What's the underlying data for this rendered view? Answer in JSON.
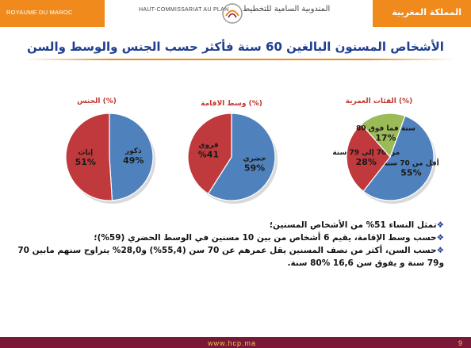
{
  "header": {
    "left_label": "ROYAUME DU MAROC",
    "right_label": "المملكة المغربية",
    "org_fr": "HAUT-COMMISSARIAT AU PLAN",
    "org_ar": "المندوبية السامية للتخطيط",
    "band_color": "#f08a1c"
  },
  "title": "الأشخاص المسنون البالغين 60 سنة فأكثر حسب الجنس والوسط والسن",
  "chart_data": [
    {
      "type": "pie",
      "title": "الجنس (%)",
      "slices": [
        {
          "label": "ذكور",
          "value": 49,
          "value_label": "49%",
          "color": "#4f81bd"
        },
        {
          "label": "إناث",
          "value": 51,
          "value_label": "51%",
          "color": "#c0393c"
        }
      ]
    },
    {
      "type": "pie",
      "title": "وسط الاقامة (%)",
      "slices": [
        {
          "label": "حضري",
          "value": 59,
          "value_label": "59%",
          "color": "#4f81bd"
        },
        {
          "label": "قروي",
          "value": 41,
          "value_label": "%41",
          "color": "#c0393c"
        }
      ]
    },
    {
      "type": "pie",
      "title": "الفئات العمرية (%)",
      "slices": [
        {
          "label": "أقل من 70 سنة",
          "value": 55,
          "value_label": "55%",
          "color": "#4f81bd"
        },
        {
          "label": "من 70 إلى 79 سنة",
          "value": 28,
          "value_label": "28%",
          "color": "#c0393c"
        },
        {
          "label": "80 سنة فما فوق",
          "value": 17,
          "value_label": "17%",
          "color": "#9bbb59"
        }
      ]
    }
  ],
  "bullets": [
    "تمثل النساء 51% من الأشخاص المسنين؛",
    "حسب وسط الإقامة، يقيم 6 أشخاص من بين 10 مسنين في الوسط الحضري (59%)؛",
    "حسب السن، أكثر من نصف المسنين يقل عمرهم عن 70 سن (55,4%) و28,0% يتراوح سنهم مابين 70 و79 سنة و يفوق سن 16,6 %80 سنة."
  ],
  "bullet_mark": "❖",
  "footer": {
    "site": "www.hcp.ma",
    "page": "9"
  }
}
